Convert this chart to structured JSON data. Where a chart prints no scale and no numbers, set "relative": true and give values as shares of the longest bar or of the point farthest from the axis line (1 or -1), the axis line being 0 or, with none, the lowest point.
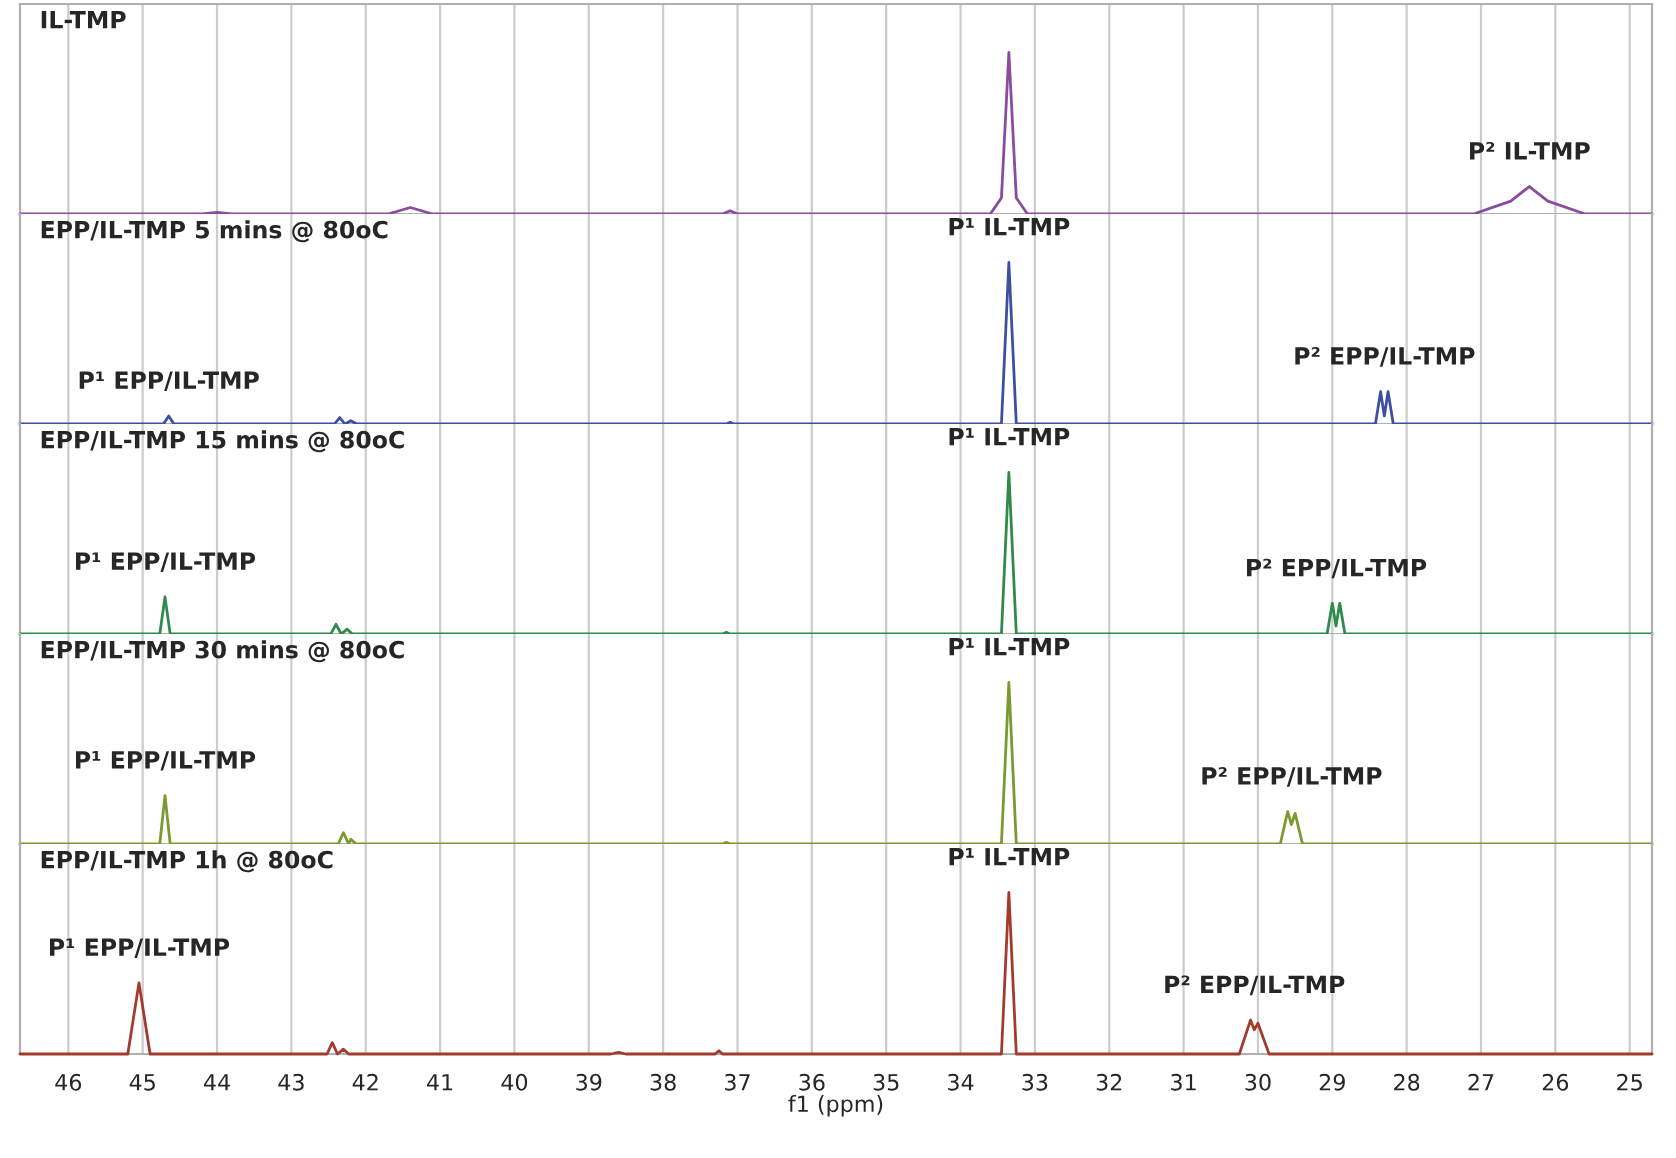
{
  "chart_data": [
    {
      "type": "line",
      "title": "IL-TMP",
      "relative": true,
      "grid": "x",
      "tick_labels": false,
      "xlim": [
        46.65,
        24.7
      ],
      "xticks": [
        46,
        45,
        44,
        43,
        42,
        41,
        40,
        39,
        38,
        37,
        36,
        35,
        34,
        33,
        32,
        31,
        30,
        29,
        28,
        27,
        26,
        25
      ],
      "series": [
        {
          "color": "#8a4c9e",
          "x": [
            46.65,
            44.2,
            44.0,
            43.8,
            41.7,
            41.4,
            41.1,
            37.2,
            37.1,
            37.0,
            33.6,
            33.45,
            33.35,
            33.25,
            33.1,
            27.1,
            26.6,
            26.35,
            26.1,
            25.6,
            24.7
          ],
          "values": [
            0,
            0,
            0.01,
            0,
            0,
            0.04,
            0,
            0,
            0.02,
            0,
            0,
            0.1,
            1,
            0.1,
            0,
            0,
            0.08,
            0.17,
            0.08,
            0,
            0
          ]
        }
      ],
      "annotations": [
        {
          "text": "P² IL-TMP",
          "x": 26.35,
          "y": 0.17
        }
      ]
    },
    {
      "type": "line",
      "title": "EPP/IL-TMP 5 mins @ 80oC",
      "relative": true,
      "grid": "x",
      "tick_labels": false,
      "xlim": [
        46.65,
        24.7
      ],
      "xticks": [
        46,
        45,
        44,
        43,
        42,
        41,
        40,
        39,
        38,
        37,
        36,
        35,
        34,
        33,
        32,
        31,
        30,
        29,
        28,
        27,
        26,
        25
      ],
      "series": [
        {
          "color": "#3f4fa0",
          "x": [
            46.65,
            44.72,
            44.65,
            44.58,
            42.42,
            42.35,
            42.28,
            42.2,
            42.12,
            37.15,
            37.1,
            37.05,
            33.45,
            33.35,
            33.25,
            28.42,
            28.35,
            28.3,
            28.25,
            28.18,
            24.7
          ],
          "values": [
            0,
            0,
            0.05,
            0,
            0,
            0.04,
            0,
            0.02,
            0,
            0,
            0.01,
            0,
            0,
            1,
            0,
            0,
            0.2,
            0.05,
            0.2,
            0,
            0
          ]
        }
      ],
      "annotations": [
        {
          "text": "P¹ EPP/IL-TMP",
          "x": 44.65,
          "y": 0.05
        },
        {
          "text": "P¹ IL-TMP",
          "x": 33.35,
          "y": 1
        },
        {
          "text": "P² EPP/IL-TMP",
          "x": 28.3,
          "y": 0.2
        }
      ]
    },
    {
      "type": "line",
      "title": "EPP/IL-TMP 15 mins @ 80oC",
      "relative": true,
      "grid": "x",
      "tick_labels": false,
      "xlim": [
        46.65,
        24.7
      ],
      "xticks": [
        46,
        45,
        44,
        43,
        42,
        41,
        40,
        39,
        38,
        37,
        36,
        35,
        34,
        33,
        32,
        31,
        30,
        29,
        28,
        27,
        26,
        25
      ],
      "series": [
        {
          "color": "#2e8b4a",
          "x": [
            46.65,
            44.77,
            44.7,
            44.63,
            42.47,
            42.4,
            42.33,
            42.25,
            42.18,
            37.2,
            37.15,
            37.1,
            33.45,
            33.35,
            33.25,
            29.07,
            29.0,
            28.95,
            28.9,
            28.83,
            24.7
          ],
          "values": [
            0,
            0,
            0.23,
            0,
            0,
            0.06,
            0,
            0.03,
            0,
            0,
            0.01,
            0,
            0,
            1,
            0,
            0,
            0.19,
            0.05,
            0.19,
            0,
            0
          ]
        }
      ],
      "annotations": [
        {
          "text": "P¹ EPP/IL-TMP",
          "x": 44.7,
          "y": 0.23
        },
        {
          "text": "P¹ IL-TMP",
          "x": 33.35,
          "y": 1
        },
        {
          "text": "P² EPP/IL-TMP",
          "x": 28.95,
          "y": 0.19
        }
      ]
    },
    {
      "type": "line",
      "title": "EPP/IL-TMP 30 mins @ 80oC",
      "relative": true,
      "grid": "x",
      "tick_labels": false,
      "xlim": [
        46.65,
        24.7
      ],
      "xticks": [
        46,
        45,
        44,
        43,
        42,
        41,
        40,
        39,
        38,
        37,
        36,
        35,
        34,
        33,
        32,
        31,
        30,
        29,
        28,
        27,
        26,
        25
      ],
      "series": [
        {
          "color": "#7a9a2e",
          "x": [
            46.65,
            44.77,
            44.7,
            44.63,
            42.37,
            42.3,
            42.23,
            42.2,
            42.13,
            37.2,
            37.15,
            37.1,
            33.45,
            33.35,
            33.25,
            29.7,
            29.6,
            29.55,
            29.5,
            29.4,
            24.7
          ],
          "values": [
            0,
            0,
            0.3,
            0,
            0,
            0.07,
            0,
            0.03,
            0,
            0,
            0.01,
            0,
            0,
            1,
            0,
            0,
            0.2,
            0.12,
            0.19,
            0,
            0
          ]
        }
      ],
      "annotations": [
        {
          "text": "P¹ EPP/IL-TMP",
          "x": 44.7,
          "y": 0.3
        },
        {
          "text": "P¹ IL-TMP",
          "x": 33.35,
          "y": 1
        },
        {
          "text": "P² EPP/IL-TMP",
          "x": 29.55,
          "y": 0.2
        }
      ]
    },
    {
      "type": "line",
      "title": "EPP/IL-TMP 1h @ 80oC",
      "relative": true,
      "grid": "x",
      "tick_labels": "x",
      "xlabel": "f1 (ppm)",
      "xlim": [
        46.65,
        24.7
      ],
      "xticks": [
        46,
        45,
        44,
        43,
        42,
        41,
        40,
        39,
        38,
        37,
        36,
        35,
        34,
        33,
        32,
        31,
        30,
        29,
        28,
        27,
        26,
        25
      ],
      "series": [
        {
          "color": "#a33a2e",
          "x": [
            46.65,
            45.2,
            45.05,
            44.9,
            42.52,
            42.45,
            42.38,
            42.3,
            42.23,
            38.7,
            38.6,
            38.5,
            37.3,
            37.25,
            37.2,
            33.45,
            33.35,
            33.25,
            30.25,
            30.1,
            30.05,
            30.0,
            29.85,
            24.7
          ],
          "values": [
            0,
            0,
            0.44,
            0,
            0,
            0.07,
            0,
            0.03,
            0,
            0,
            0.01,
            0,
            0,
            0.02,
            0,
            0,
            1,
            0,
            0,
            0.21,
            0.15,
            0.19,
            0,
            0
          ]
        }
      ],
      "annotations": [
        {
          "text": "P¹ EPP/IL-TMP",
          "x": 45.05,
          "y": 0.44
        },
        {
          "text": "P¹ IL-TMP",
          "x": 33.35,
          "y": 1
        },
        {
          "text": "P² EPP/IL-TMP",
          "x": 30.05,
          "y": 0.21
        }
      ]
    }
  ]
}
